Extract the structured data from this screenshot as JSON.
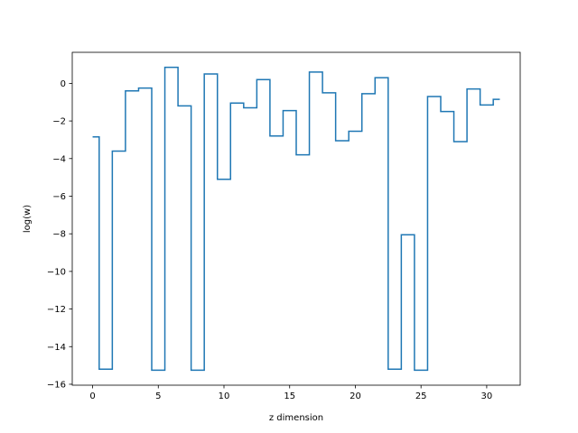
{
  "chart_data": {
    "type": "line",
    "drawstyle": "steps-mid",
    "title": "",
    "xlabel": "z dimension",
    "ylabel": "log(w)",
    "xlim": [
      -1.55,
      32.55
    ],
    "ylim": [
      -16.05,
      1.65
    ],
    "xticks": [
      0,
      5,
      10,
      15,
      20,
      25,
      30
    ],
    "yticks": [
      0,
      -2,
      -4,
      -6,
      -8,
      -10,
      -12,
      -14,
      -16
    ],
    "xtick_labels": [
      "0",
      "5",
      "10",
      "15",
      "20",
      "25",
      "30"
    ],
    "ytick_labels": [
      "0",
      "−2",
      "−4",
      "−6",
      "−8",
      "−10",
      "−12",
      "−14",
      "−16"
    ],
    "grid": false,
    "legend": "none",
    "line_color": "#1f77b4",
    "series": [
      {
        "x": [
          0,
          1,
          2,
          3,
          4,
          5,
          6,
          7,
          8,
          9,
          10,
          11,
          12,
          13,
          14,
          15,
          16,
          17,
          18,
          19,
          20,
          21,
          22,
          23,
          24,
          25,
          26,
          27,
          28,
          29,
          30,
          31
        ],
        "values": [
          -2.85,
          -15.2,
          -3.6,
          -0.4,
          -0.25,
          -15.25,
          0.85,
          -1.2,
          -15.25,
          0.5,
          -5.1,
          -1.05,
          -1.3,
          0.2,
          -2.8,
          -1.45,
          -3.8,
          0.6,
          -0.5,
          -3.05,
          -2.55,
          -0.55,
          0.3,
          -15.2,
          -8.05,
          -15.25,
          -0.7,
          -1.5,
          -3.1,
          -0.3,
          -1.15,
          -0.85
        ]
      }
    ]
  }
}
